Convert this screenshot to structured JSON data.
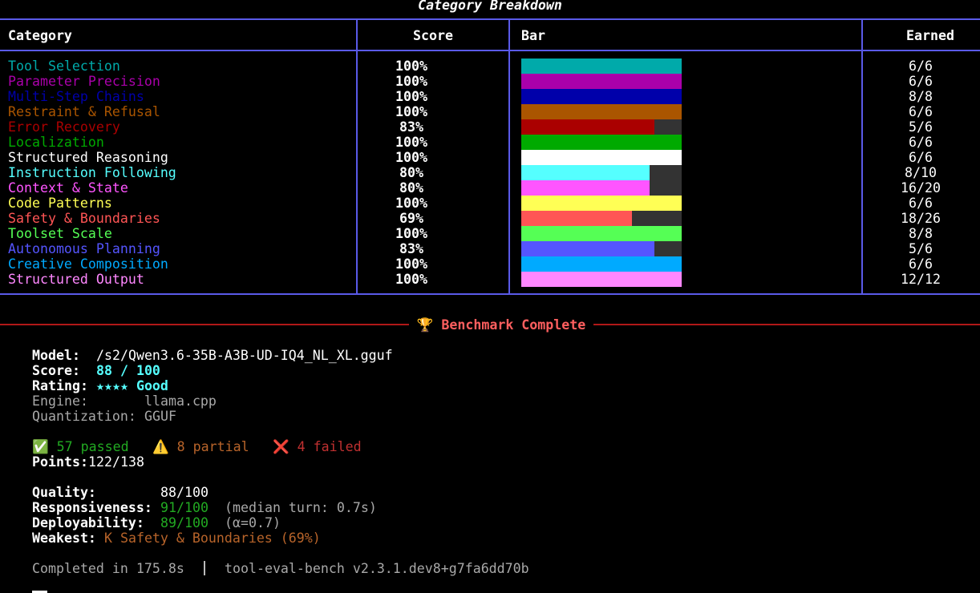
{
  "title": "Category Breakdown",
  "table": {
    "headers": [
      "Category",
      "Score",
      "Bar",
      "Earned"
    ],
    "rows": [
      {
        "category": "Tool Selection",
        "color": "#00aaaa",
        "score": 100,
        "score_label": "100%",
        "earned": "6/6"
      },
      {
        "category": "Parameter Precision",
        "color": "#aa00aa",
        "score": 100,
        "score_label": "100%",
        "earned": "6/6"
      },
      {
        "category": "Multi-Step Chains",
        "color": "#0000aa",
        "score": 100,
        "score_label": "100%",
        "earned": "8/8"
      },
      {
        "category": "Restraint & Refusal",
        "color": "#aa5500",
        "score": 100,
        "score_label": "100%",
        "earned": "6/6"
      },
      {
        "category": "Error Recovery",
        "color": "#aa0000",
        "score": 83,
        "score_label": "83%",
        "earned": "5/6"
      },
      {
        "category": "Localization",
        "color": "#00aa00",
        "score": 100,
        "score_label": "100%",
        "earned": "6/6"
      },
      {
        "category": "Structured Reasoning",
        "color": "#ffffff",
        "score": 100,
        "score_label": "100%",
        "earned": "6/6"
      },
      {
        "category": "Instruction Following",
        "color": "#55ffff",
        "score": 80,
        "score_label": "80%",
        "earned": "8/10"
      },
      {
        "category": "Context & State",
        "color": "#ff55ff",
        "score": 80,
        "score_label": "80%",
        "earned": "16/20"
      },
      {
        "category": "Code Patterns",
        "color": "#ffff55",
        "score": 100,
        "score_label": "100%",
        "earned": "6/6"
      },
      {
        "category": "Safety & Boundaries",
        "color": "#ff5555",
        "score": 69,
        "score_label": "69%",
        "earned": "18/26"
      },
      {
        "category": "Toolset Scale",
        "color": "#55ff55",
        "score": 100,
        "score_label": "100%",
        "earned": "8/8"
      },
      {
        "category": "Autonomous Planning",
        "color": "#5555ff",
        "score": 83,
        "score_label": "83%",
        "earned": "5/6"
      },
      {
        "category": "Creative Composition",
        "color": "#00aaff",
        "score": 100,
        "score_label": "100%",
        "earned": "6/6"
      },
      {
        "category": "Structured Output",
        "color": "#ff87ff",
        "score": 100,
        "score_label": "100%",
        "earned": "12/12"
      }
    ]
  },
  "banner": "🏆 Benchmark Complete",
  "summary": {
    "model": {
      "label": "Model:",
      "value": "/s2/Qwen3.6-35B-A3B-UD-IQ4_NL_XL.gguf"
    },
    "score": {
      "label": "Score:",
      "value": "88 / 100"
    },
    "rating": {
      "label": "Rating:",
      "value": "★★★★ Good"
    },
    "engine": {
      "label": "Engine:",
      "value": "llama.cpp"
    },
    "quantization": {
      "label": "Quantization:",
      "value": "GGUF"
    },
    "passed": "✅ 57 passed",
    "partial": "⚠️ 8 partial",
    "failed": "❌ 4 failed",
    "points": {
      "label": "Points:",
      "value": "122/138"
    },
    "quality": {
      "label": "Quality:",
      "value": "88/100"
    },
    "responsiveness": {
      "label": "Responsiveness:",
      "value": "91/100",
      "note": "(median turn: 0.7s)"
    },
    "deployability": {
      "label": "Deployability:",
      "value": "89/100",
      "note": "(α=0.7)"
    },
    "weakest": {
      "label": "Weakest:",
      "value": "K Safety & Boundaries (69%)"
    }
  },
  "footer": {
    "completed": "Completed in 175.8s",
    "version": "tool-eval-bench v2.3.1.dev8+g7fa6dd70b"
  }
}
